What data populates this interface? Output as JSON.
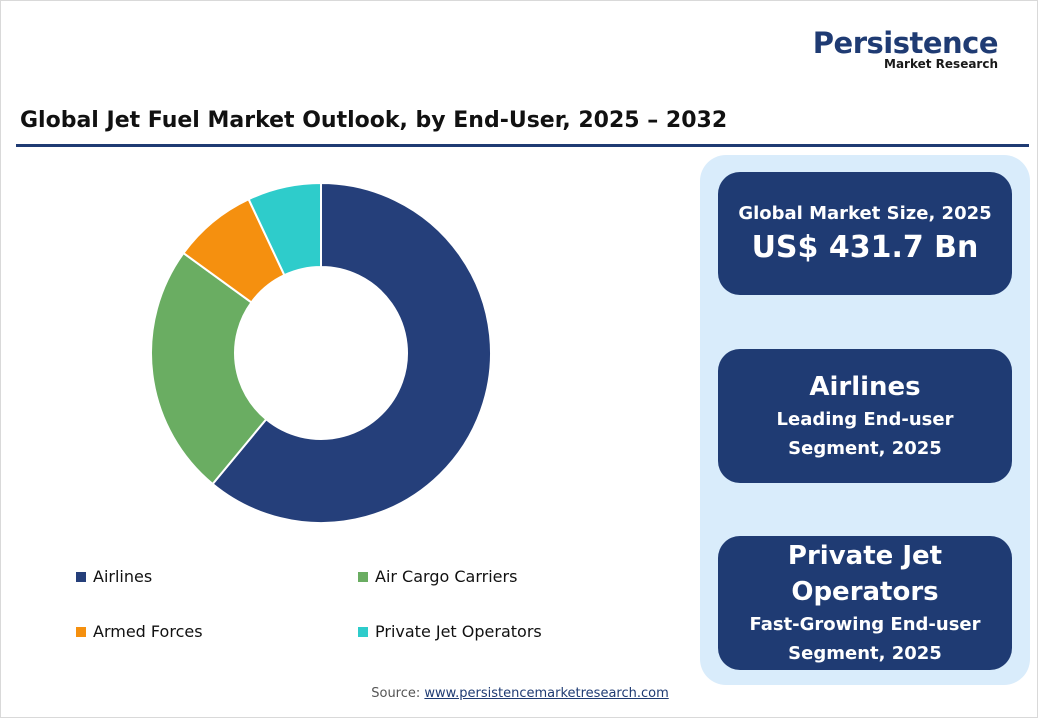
{
  "logo": {
    "main": "Persistence",
    "sub": "Market Research"
  },
  "title": "Global Jet Fuel Market Outlook, by End-User, 2025 – 2032",
  "chart_data": {
    "type": "pie",
    "donut": true,
    "categories": [
      "Airlines",
      "Air Cargo Carriers",
      "Armed Forces",
      "Private Jet Operators"
    ],
    "values": [
      61,
      24,
      8,
      7
    ],
    "colors": [
      "#253f7a",
      "#6aad62",
      "#f5900f",
      "#2ecccb"
    ],
    "legend_position": "bottom"
  },
  "cards": {
    "market_size_label": "Global Market Size, 2025",
    "market_size_value": "US$ 431.7 Bn",
    "leading_name": "Airlines",
    "leading_line1": "Leading End-user",
    "leading_line2": "Segment, 2025",
    "growing_name_line1": "Private Jet",
    "growing_name_line2": "Operators",
    "growing_line1": "Fast-Growing End-user",
    "growing_line2": "Segment, 2025"
  },
  "source": {
    "label": "Source:",
    "link": "www.persistencemarketresearch.com"
  }
}
